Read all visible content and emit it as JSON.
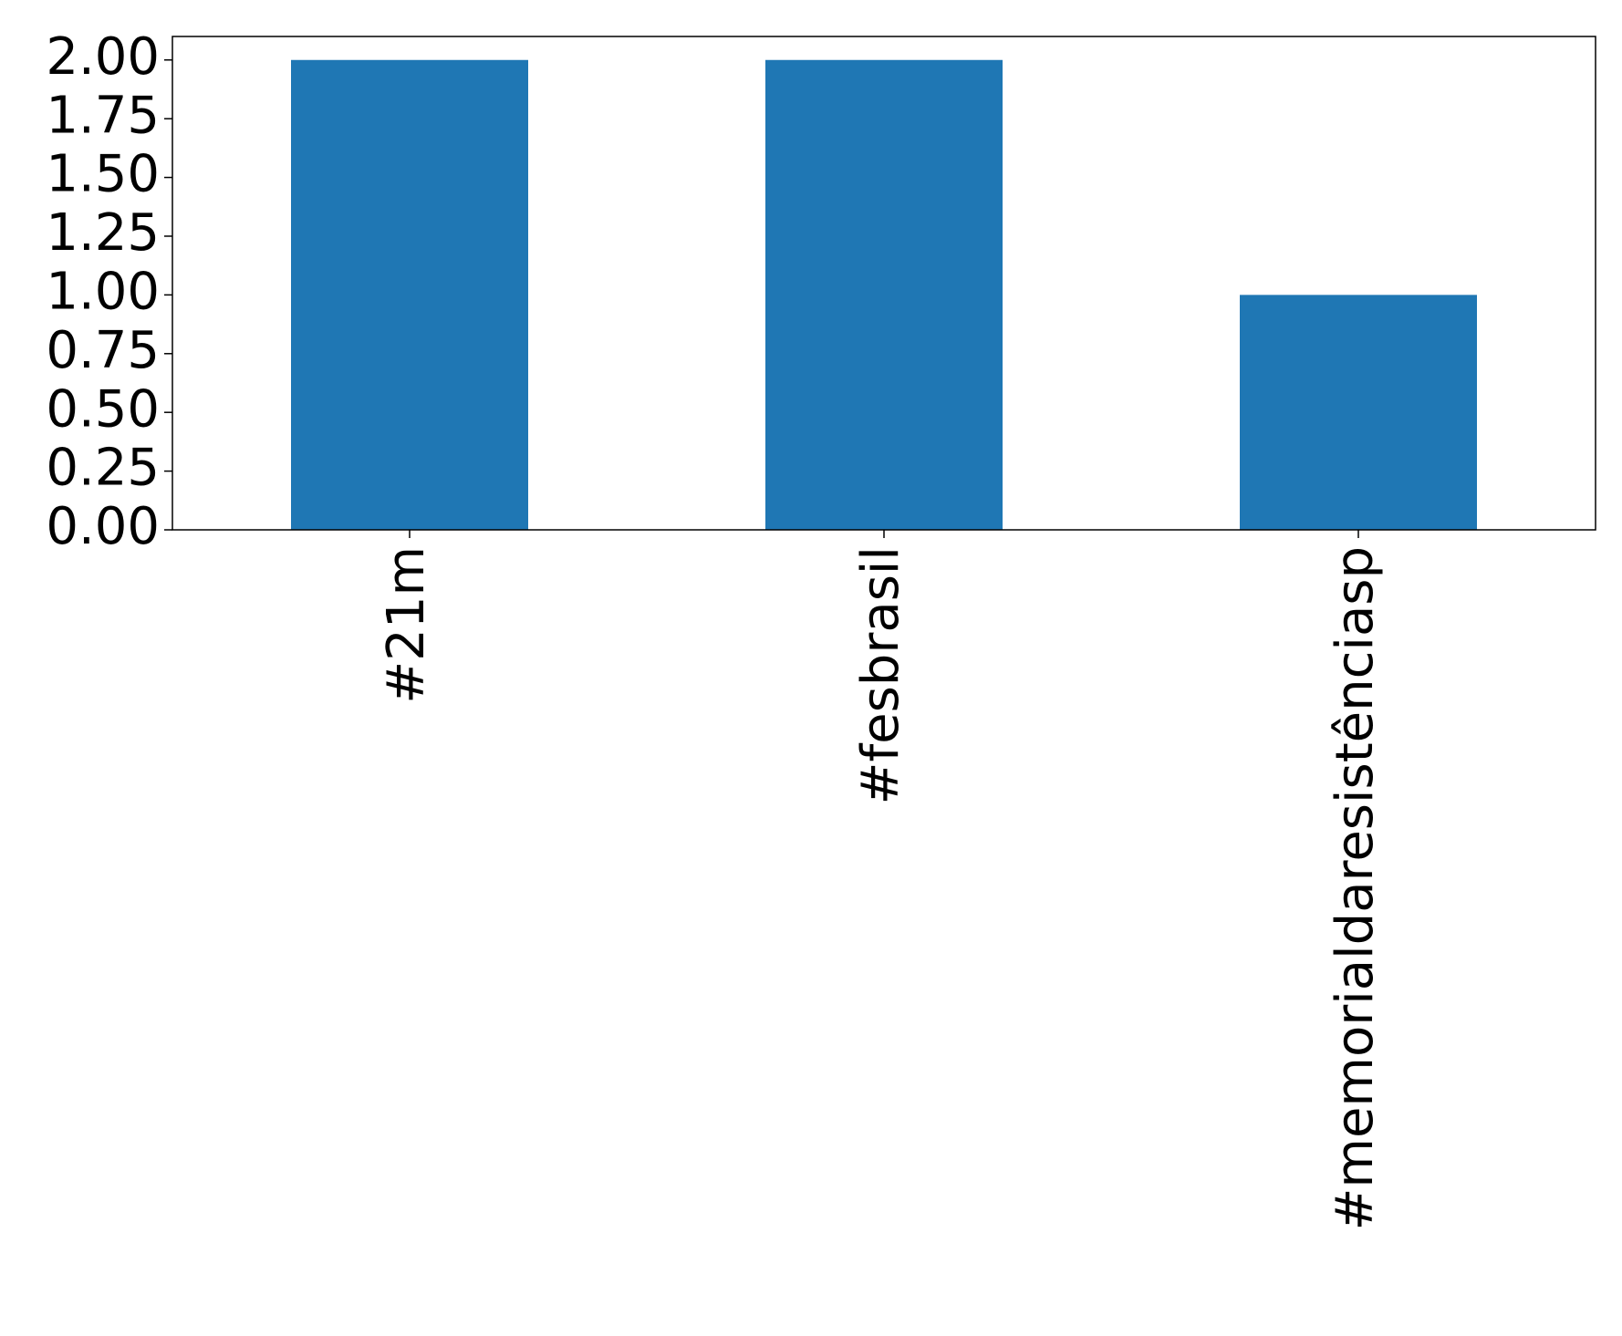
{
  "chart_data": {
    "type": "bar",
    "categories": [
      "#21m",
      "#fesbrasil",
      "#memorialdaresistênciasp"
    ],
    "values": [
      2,
      2,
      1
    ],
    "color": "#1f77b4",
    "ylim": [
      0,
      2.1
    ],
    "yticks": [
      {
        "value": 0,
        "label": "0.00"
      },
      {
        "value": 0.25,
        "label": "0.25"
      },
      {
        "value": 0.5,
        "label": "0.50"
      },
      {
        "value": 0.75,
        "label": "0.75"
      },
      {
        "value": 1,
        "label": "1.00"
      },
      {
        "value": 1.25,
        "label": "1.25"
      },
      {
        "value": 1.5,
        "label": "1.50"
      },
      {
        "value": 1.75,
        "label": "1.75"
      },
      {
        "value": 2,
        "label": "2.00"
      }
    ],
    "grid": false
  }
}
